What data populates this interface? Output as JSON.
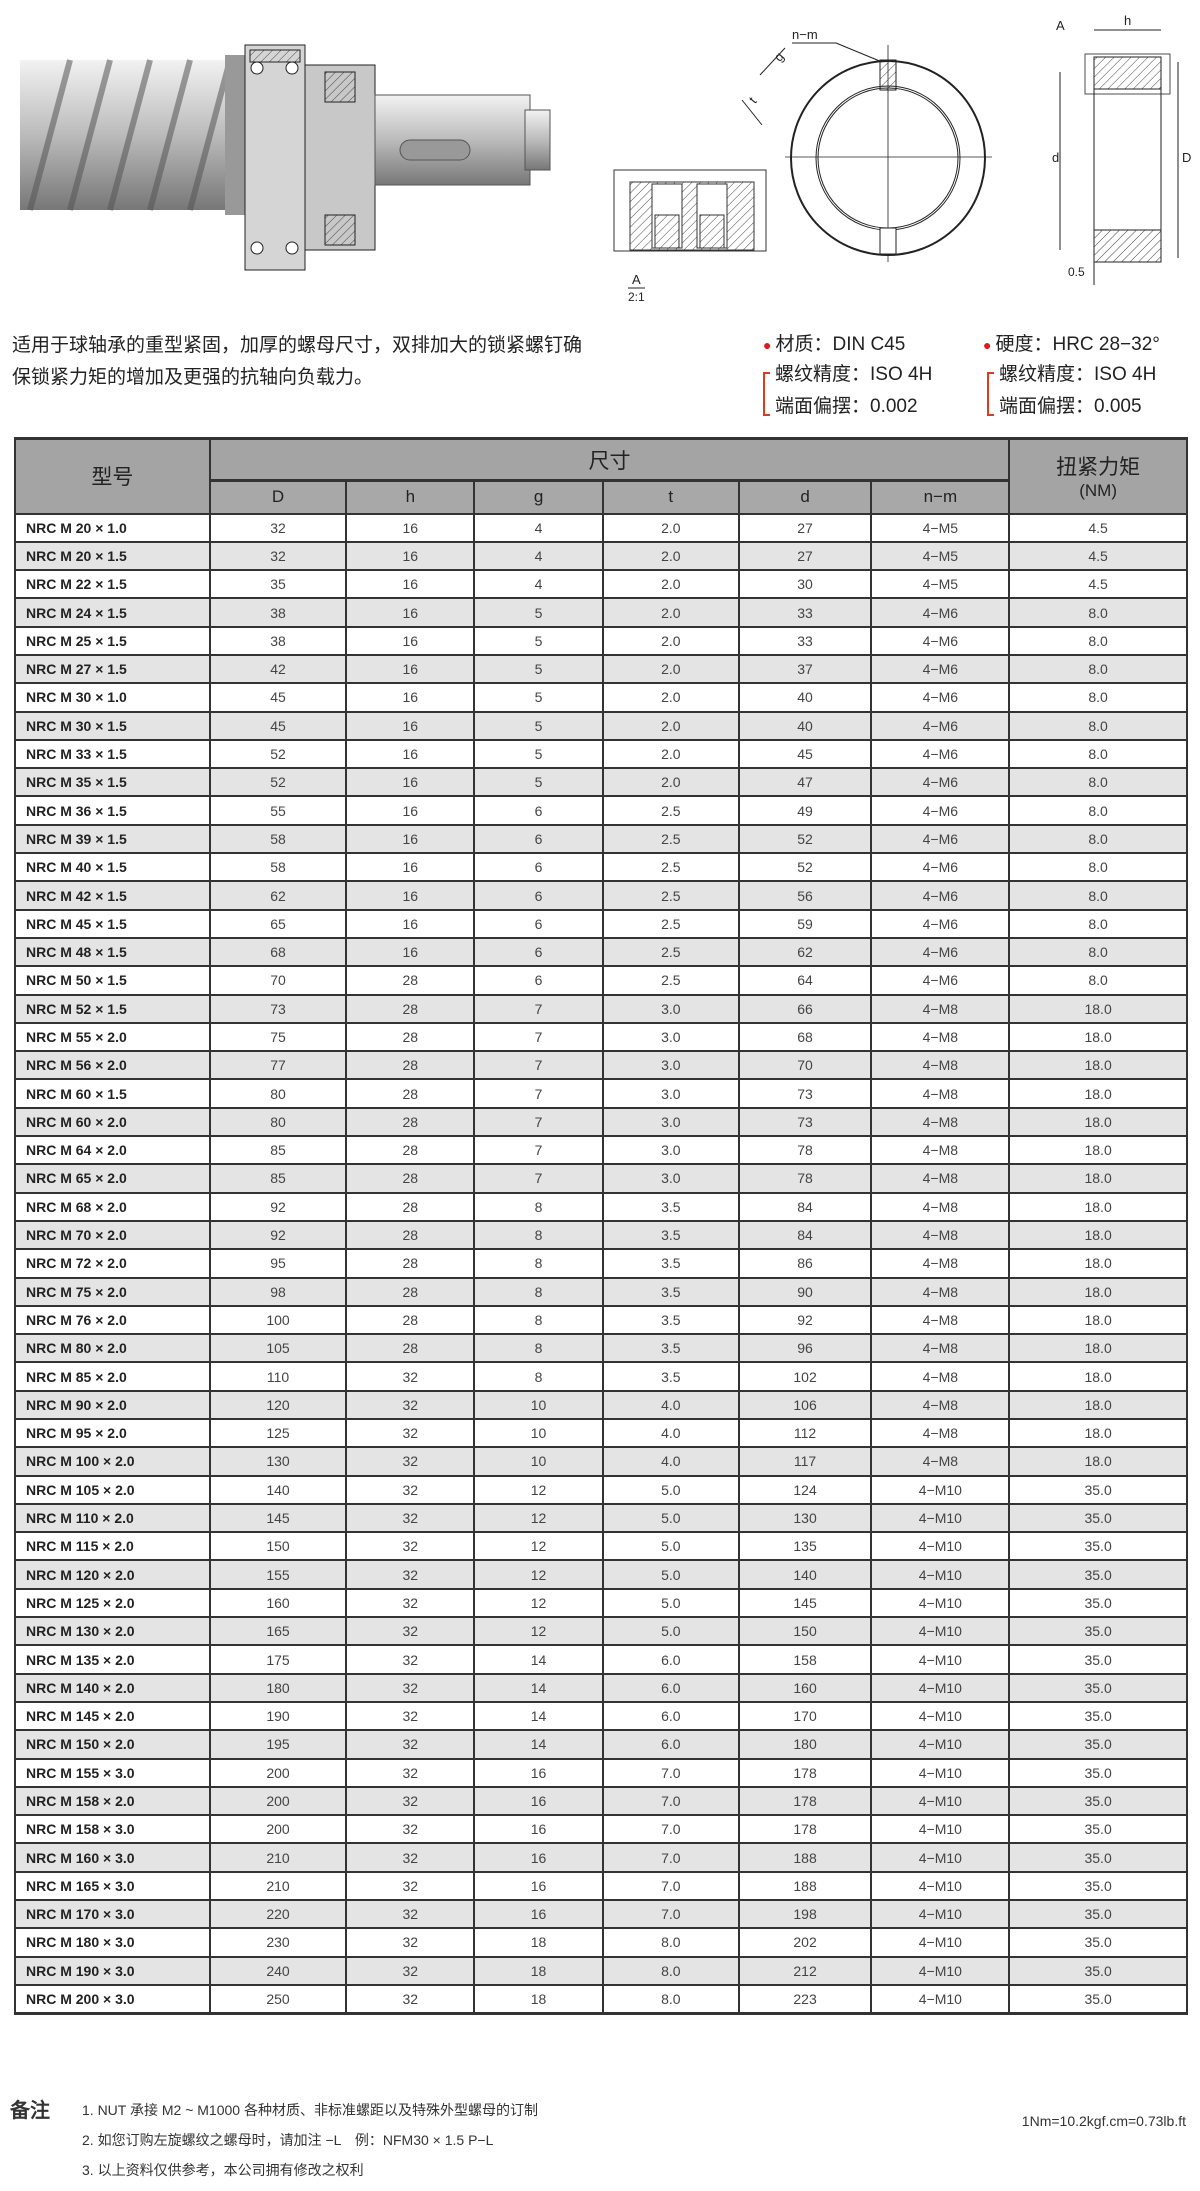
{
  "drawing": {
    "label_nm": "n−m",
    "label_g": "g",
    "label_t": "t",
    "label_h": "h",
    "label_d": "d",
    "label_D": "D",
    "label_A": "A",
    "label_05": "0.5",
    "detail_label": "A",
    "detail_scale": "2:1"
  },
  "description": {
    "line1": "适用于球轴承的重型紧固，加厚的螺母尺寸，双排加大的锁紧螺钉确",
    "line2": "保锁紧力矩的增加及更强的抗轴向负载力。"
  },
  "specs": {
    "accent_color": "#e01a1a",
    "material": "材质：DIN C45",
    "hardness": "硬度：HRC 28−32°",
    "left_group": {
      "thread": "螺纹精度：ISO 4H",
      "runout": "端面偏摆：0.002"
    },
    "right_group": {
      "thread": "螺纹精度：ISO 4H",
      "runout": "端面偏摆：0.005"
    }
  },
  "table": {
    "header_model": "型号",
    "header_dims": "尺寸",
    "header_torque": "扭紧力矩",
    "header_torque_unit": "(NM)",
    "columns": [
      "D",
      "h",
      "g",
      "t",
      "d",
      "n−m"
    ],
    "rows": [
      [
        "NRC M 20 × 1.0",
        "32",
        "16",
        "4",
        "2.0",
        "27",
        "4−M5",
        "4.5"
      ],
      [
        "NRC M 20 × 1.5",
        "32",
        "16",
        "4",
        "2.0",
        "27",
        "4−M5",
        "4.5"
      ],
      [
        "NRC M 22 × 1.5",
        "35",
        "16",
        "4",
        "2.0",
        "30",
        "4−M5",
        "4.5"
      ],
      [
        "NRC M 24 × 1.5",
        "38",
        "16",
        "5",
        "2.0",
        "33",
        "4−M6",
        "8.0"
      ],
      [
        "NRC M 25 × 1.5",
        "38",
        "16",
        "5",
        "2.0",
        "33",
        "4−M6",
        "8.0"
      ],
      [
        "NRC M 27 × 1.5",
        "42",
        "16",
        "5",
        "2.0",
        "37",
        "4−M6",
        "8.0"
      ],
      [
        "NRC M 30 × 1.0",
        "45",
        "16",
        "5",
        "2.0",
        "40",
        "4−M6",
        "8.0"
      ],
      [
        "NRC M 30 × 1.5",
        "45",
        "16",
        "5",
        "2.0",
        "40",
        "4−M6",
        "8.0"
      ],
      [
        "NRC M 33 × 1.5",
        "52",
        "16",
        "5",
        "2.0",
        "45",
        "4−M6",
        "8.0"
      ],
      [
        "NRC M 35 × 1.5",
        "52",
        "16",
        "5",
        "2.0",
        "47",
        "4−M6",
        "8.0"
      ],
      [
        "NRC M 36 × 1.5",
        "55",
        "16",
        "6",
        "2.5",
        "49",
        "4−M6",
        "8.0"
      ],
      [
        "NRC M 39 × 1.5",
        "58",
        "16",
        "6",
        "2.5",
        "52",
        "4−M6",
        "8.0"
      ],
      [
        "NRC M 40 × 1.5",
        "58",
        "16",
        "6",
        "2.5",
        "52",
        "4−M6",
        "8.0"
      ],
      [
        "NRC M 42 × 1.5",
        "62",
        "16",
        "6",
        "2.5",
        "56",
        "4−M6",
        "8.0"
      ],
      [
        "NRC M 45 × 1.5",
        "65",
        "16",
        "6",
        "2.5",
        "59",
        "4−M6",
        "8.0"
      ],
      [
        "NRC M 48 × 1.5",
        "68",
        "16",
        "6",
        "2.5",
        "62",
        "4−M6",
        "8.0"
      ],
      [
        "NRC M 50 × 1.5",
        "70",
        "28",
        "6",
        "2.5",
        "64",
        "4−M6",
        "8.0"
      ],
      [
        "NRC M 52 × 1.5",
        "73",
        "28",
        "7",
        "3.0",
        "66",
        "4−M8",
        "18.0"
      ],
      [
        "NRC M 55 × 2.0",
        "75",
        "28",
        "7",
        "3.0",
        "68",
        "4−M8",
        "18.0"
      ],
      [
        "NRC M 56 × 2.0",
        "77",
        "28",
        "7",
        "3.0",
        "70",
        "4−M8",
        "18.0"
      ],
      [
        "NRC M 60 × 1.5",
        "80",
        "28",
        "7",
        "3.0",
        "73",
        "4−M8",
        "18.0"
      ],
      [
        "NRC M 60 × 2.0",
        "80",
        "28",
        "7",
        "3.0",
        "73",
        "4−M8",
        "18.0"
      ],
      [
        "NRC M 64 × 2.0",
        "85",
        "28",
        "7",
        "3.0",
        "78",
        "4−M8",
        "18.0"
      ],
      [
        "NRC M 65 × 2.0",
        "85",
        "28",
        "7",
        "3.0",
        "78",
        "4−M8",
        "18.0"
      ],
      [
        "NRC M 68 × 2.0",
        "92",
        "28",
        "8",
        "3.5",
        "84",
        "4−M8",
        "18.0"
      ],
      [
        "NRC M 70 × 2.0",
        "92",
        "28",
        "8",
        "3.5",
        "84",
        "4−M8",
        "18.0"
      ],
      [
        "NRC M 72 × 2.0",
        "95",
        "28",
        "8",
        "3.5",
        "86",
        "4−M8",
        "18.0"
      ],
      [
        "NRC M 75 × 2.0",
        "98",
        "28",
        "8",
        "3.5",
        "90",
        "4−M8",
        "18.0"
      ],
      [
        "NRC M 76 × 2.0",
        "100",
        "28",
        "8",
        "3.5",
        "92",
        "4−M8",
        "18.0"
      ],
      [
        "NRC M 80 × 2.0",
        "105",
        "28",
        "8",
        "3.5",
        "96",
        "4−M8",
        "18.0"
      ],
      [
        "NRC M 85 × 2.0",
        "110",
        "32",
        "8",
        "3.5",
        "102",
        "4−M8",
        "18.0"
      ],
      [
        "NRC M 90 × 2.0",
        "120",
        "32",
        "10",
        "4.0",
        "106",
        "4−M8",
        "18.0"
      ],
      [
        "NRC M 95 × 2.0",
        "125",
        "32",
        "10",
        "4.0",
        "112",
        "4−M8",
        "18.0"
      ],
      [
        "NRC M 100 × 2.0",
        "130",
        "32",
        "10",
        "4.0",
        "117",
        "4−M8",
        "18.0"
      ],
      [
        "NRC M 105 × 2.0",
        "140",
        "32",
        "12",
        "5.0",
        "124",
        "4−M10",
        "35.0"
      ],
      [
        "NRC M 110 × 2.0",
        "145",
        "32",
        "12",
        "5.0",
        "130",
        "4−M10",
        "35.0"
      ],
      [
        "NRC M 115 × 2.0",
        "150",
        "32",
        "12",
        "5.0",
        "135",
        "4−M10",
        "35.0"
      ],
      [
        "NRC M 120 × 2.0",
        "155",
        "32",
        "12",
        "5.0",
        "140",
        "4−M10",
        "35.0"
      ],
      [
        "NRC M 125 × 2.0",
        "160",
        "32",
        "12",
        "5.0",
        "145",
        "4−M10",
        "35.0"
      ],
      [
        "NRC M 130 × 2.0",
        "165",
        "32",
        "12",
        "5.0",
        "150",
        "4−M10",
        "35.0"
      ],
      [
        "NRC M 135 × 2.0",
        "175",
        "32",
        "14",
        "6.0",
        "158",
        "4−M10",
        "35.0"
      ],
      [
        "NRC M 140 × 2.0",
        "180",
        "32",
        "14",
        "6.0",
        "160",
        "4−M10",
        "35.0"
      ],
      [
        "NRC M 145 × 2.0",
        "190",
        "32",
        "14",
        "6.0",
        "170",
        "4−M10",
        "35.0"
      ],
      [
        "NRC M 150 × 2.0",
        "195",
        "32",
        "14",
        "6.0",
        "180",
        "4−M10",
        "35.0"
      ],
      [
        "NRC M 155 × 3.0",
        "200",
        "32",
        "16",
        "7.0",
        "178",
        "4−M10",
        "35.0"
      ],
      [
        "NRC M 158 × 2.0",
        "200",
        "32",
        "16",
        "7.0",
        "178",
        "4−M10",
        "35.0"
      ],
      [
        "NRC M 158 × 3.0",
        "200",
        "32",
        "16",
        "7.0",
        "178",
        "4−M10",
        "35.0"
      ],
      [
        "NRC M 160 × 3.0",
        "210",
        "32",
        "16",
        "7.0",
        "188",
        "4−M10",
        "35.0"
      ],
      [
        "NRC M 165 × 3.0",
        "210",
        "32",
        "16",
        "7.0",
        "188",
        "4−M10",
        "35.0"
      ],
      [
        "NRC M 170 × 3.0",
        "220",
        "32",
        "16",
        "7.0",
        "198",
        "4−M10",
        "35.0"
      ],
      [
        "NRC M 180 × 3.0",
        "230",
        "32",
        "18",
        "8.0",
        "202",
        "4−M10",
        "35.0"
      ],
      [
        "NRC M 190 × 3.0",
        "240",
        "32",
        "18",
        "8.0",
        "212",
        "4−M10",
        "35.0"
      ],
      [
        "NRC M 200 × 3.0",
        "250",
        "32",
        "18",
        "8.0",
        "223",
        "4−M10",
        "35.0"
      ]
    ]
  },
  "notes": {
    "title": "备注",
    "items": [
      "1. NUT 承接 M2 ~ M1000 各种材质、非标准螺距以及特殊外型螺母的订制",
      "2. 如您订购左旋螺纹之螺母时，请加注 −L　例：NFM30 × 1.5 P−L",
      "3. 以上资料仅供参考，本公司拥有修改之权利"
    ],
    "conversion": "1Nm=10.2kgf.cm=0.73lb.ft"
  }
}
